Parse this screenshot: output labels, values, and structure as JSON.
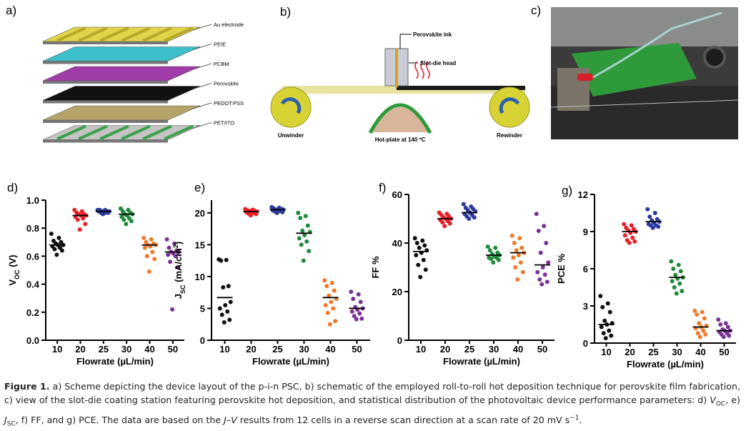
{
  "diagram": {
    "a": {
      "label": "a)",
      "layers": [
        "Au electrode",
        "PEIE",
        "PCBM",
        "Perovskite",
        "PEDOT:PSS",
        "PET/ITO"
      ]
    },
    "b": {
      "label": "b)",
      "texts": [
        "Perovskite ink",
        "Slot-die head",
        "Unwinder",
        "Hot-plate at 140 ºC",
        "Rewinder"
      ]
    },
    "c": {
      "label": "c)"
    }
  },
  "chart_data": [
    {
      "type": "strip",
      "panel": "d)",
      "ylabel": [
        "V",
        "OC",
        " (V)"
      ],
      "ylabel_styles": [
        "normal",
        "sub",
        "normal"
      ],
      "xlabel": "Flowrate (µL/min)",
      "categories": [
        "10",
        "20",
        "25",
        "30",
        "40",
        "50"
      ],
      "colors": [
        "#111111",
        "#e8202a",
        "#2b3a9b",
        "#1f8a3c",
        "#f07a2a",
        "#7b3294"
      ],
      "ylim": [
        0,
        1.0
      ],
      "yticks": [
        {
          "value": 0,
          "label": "0.0"
        },
        0.2,
        0.4,
        0.6,
        0.8,
        {
          "value": 1,
          "label": "1.0"
        }
      ],
      "means": [
        0.68,
        0.89,
        0.92,
        0.9,
        0.68,
        0.63
      ],
      "groups": [
        {
          "values": [
            0.76,
            0.73,
            0.71,
            0.7,
            0.69,
            0.68,
            0.68,
            0.67,
            0.66,
            0.65,
            0.64,
            0.61
          ]
        },
        {
          "values": [
            0.93,
            0.92,
            0.91,
            0.9,
            0.9,
            0.89,
            0.89,
            0.88,
            0.87,
            0.86,
            0.83,
            0.79
          ]
        },
        {
          "values": [
            0.93,
            0.93,
            0.93,
            0.92,
            0.92,
            0.92,
            0.92,
            0.92,
            0.91,
            0.91,
            0.91,
            0.9
          ]
        },
        {
          "values": [
            0.94,
            0.93,
            0.92,
            0.91,
            0.9,
            0.9,
            0.89,
            0.88,
            0.87,
            0.86,
            0.85,
            0.83
          ]
        },
        {
          "values": [
            0.73,
            0.72,
            0.7,
            0.69,
            0.68,
            0.68,
            0.67,
            0.66,
            0.63,
            0.6,
            0.58,
            0.49
          ]
        },
        {
          "values": [
            0.72,
            0.69,
            0.66,
            0.64,
            0.63,
            0.63,
            0.62,
            0.61,
            0.6,
            0.56,
            0.52,
            0.22
          ]
        }
      ]
    },
    {
      "type": "strip",
      "panel": "e)",
      "ylabel": [
        "J",
        "SC",
        " (mA/cm",
        "2",
        ")"
      ],
      "ylabel_styles": [
        "normal",
        "sub",
        "normal",
        "sup",
        "normal"
      ],
      "xlabel": "Flowrate (µL/min)",
      "categories": [
        "10",
        "20",
        "25",
        "30",
        "40",
        "50"
      ],
      "colors": [
        "#111111",
        "#e8202a",
        "#2b3a9b",
        "#1f8a3c",
        "#f07a2a",
        "#7b3294"
      ],
      "ylim": [
        0,
        22
      ],
      "yticks": [
        0,
        5,
        10,
        15,
        20
      ],
      "means": [
        6.7,
        20.2,
        20.5,
        16.8,
        6.7,
        5.0
      ],
      "groups": [
        {
          "values": [
            12.7,
            12.6,
            12.5,
            8.5,
            8.3,
            6.0,
            5.5,
            5.0,
            4.5,
            4.0,
            3.2,
            2.8
          ]
        },
        {
          "values": [
            20.6,
            20.5,
            20.4,
            20.3,
            20.3,
            20.2,
            20.2,
            20.1,
            20.0,
            19.9,
            19.8,
            19.6
          ]
        },
        {
          "values": [
            20.9,
            20.8,
            20.7,
            20.6,
            20.5,
            20.5,
            20.4,
            20.4,
            20.3,
            20.2,
            20.1,
            20.0
          ]
        },
        {
          "values": [
            20.0,
            19.5,
            19.2,
            18.0,
            17.2,
            17.0,
            16.5,
            16.0,
            15.5,
            15.0,
            14.0,
            12.5
          ]
        },
        {
          "values": [
            9.4,
            9.0,
            8.5,
            7.8,
            7.0,
            6.5,
            6.0,
            5.5,
            5.0,
            4.3,
            3.0,
            2.5
          ]
        },
        {
          "values": [
            7.6,
            7.2,
            6.5,
            6.0,
            5.2,
            5.0,
            4.8,
            4.5,
            4.2,
            3.8,
            3.4,
            3.3
          ]
        }
      ]
    },
    {
      "type": "strip",
      "panel": "f)",
      "ylabel": [
        "FF %"
      ],
      "ylabel_styles": [
        "normal"
      ],
      "xlabel": "Flowrate (µL/min)",
      "categories": [
        "10",
        "20",
        "25",
        "30",
        "40",
        "50"
      ],
      "colors": [
        "#111111",
        "#e8202a",
        "#2b3a9b",
        "#1f8a3c",
        "#f07a2a",
        "#7b3294"
      ],
      "ylim": [
        0,
        60
      ],
      "yticks": [
        0,
        20,
        40,
        60
      ],
      "means": [
        36.5,
        50,
        52.5,
        35,
        36,
        31
      ],
      "groups": [
        {
          "values": [
            42,
            41,
            40,
            39,
            38,
            37,
            36,
            35,
            33,
            31,
            29,
            26
          ]
        },
        {
          "values": [
            52.5,
            52,
            51.5,
            51,
            50.5,
            50,
            50,
            49.5,
            49,
            48.5,
            48,
            47
          ]
        },
        {
          "values": [
            56,
            55,
            54.5,
            54,
            53.5,
            53,
            52.5,
            52,
            51.5,
            51,
            50.5,
            50
          ]
        },
        {
          "values": [
            38.5,
            38,
            37,
            36,
            35.5,
            35,
            34.5,
            34,
            34,
            33.5,
            33,
            32
          ]
        },
        {
          "values": [
            43,
            42,
            40,
            38,
            37,
            36,
            35,
            34,
            32,
            30,
            28,
            25
          ]
        },
        {
          "values": [
            52,
            47,
            45,
            40,
            36,
            32,
            30,
            28,
            27,
            25,
            24,
            23
          ]
        }
      ]
    },
    {
      "type": "strip",
      "panel": "g)",
      "ylabel": [
        "PCE %"
      ],
      "ylabel_styles": [
        "normal"
      ],
      "xlabel": "Flowrate (µL/min)",
      "categories": [
        "10",
        "20",
        "25",
        "30",
        "40",
        "50"
      ],
      "colors": [
        "#111111",
        "#e8202a",
        "#2b3a9b",
        "#1f8a3c",
        "#f07a2a",
        "#7b3294"
      ],
      "ylim": [
        0,
        12
      ],
      "yticks": [
        0,
        3,
        6,
        9,
        12
      ],
      "means": [
        1.5,
        9.0,
        9.8,
        5.3,
        1.3,
        1.0
      ],
      "groups": [
        {
          "values": [
            3.8,
            3.2,
            2.9,
            2.5,
            1.8,
            1.6,
            1.5,
            1.3,
            1.0,
            0.8,
            0.6,
            0.4
          ]
        },
        {
          "values": [
            9.6,
            9.5,
            9.3,
            9.2,
            9.1,
            9.0,
            8.9,
            8.7,
            8.5,
            8.3,
            8.2,
            8.1
          ]
        },
        {
          "values": [
            10.8,
            10.5,
            10.2,
            10.0,
            9.9,
            9.8,
            9.7,
            9.6,
            9.5,
            9.5,
            9.4,
            9.3
          ]
        },
        {
          "values": [
            6.6,
            6.3,
            6.0,
            5.8,
            5.5,
            5.3,
            5.2,
            5.0,
            4.8,
            4.5,
            4.2,
            4.0
          ]
        },
        {
          "values": [
            2.6,
            2.5,
            2.3,
            2.0,
            1.6,
            1.4,
            1.3,
            1.2,
            1.0,
            0.8,
            0.7,
            0.5
          ]
        },
        {
          "values": [
            1.9,
            1.6,
            1.5,
            1.3,
            1.1,
            1.0,
            1.0,
            0.9,
            0.8,
            0.7,
            0.6,
            0.5
          ]
        }
      ]
    }
  ],
  "caption": {
    "parts": [
      {
        "text": "Figure 1.",
        "style": "bold"
      },
      {
        "text": "  a) Scheme depicting the device layout of the p-i-n PSC, b) schematic of the employed roll-to-roll hot deposition technique for perovskite film fabrication, c) view of the slot-die coating station featuring perovskite hot deposition, and statistical distribution of the photovoltaic device performance parameters: d) ",
        "style": "normal"
      },
      {
        "text": "V",
        "style": "italic"
      },
      {
        "text": "OC",
        "style": "sub"
      },
      {
        "text": ", e) ",
        "style": "normal"
      },
      {
        "text": "J",
        "style": "italic"
      },
      {
        "text": "SC",
        "style": "sub"
      },
      {
        "text": ", f) FF, and g) PCE. The data are based on the ",
        "style": "normal"
      },
      {
        "text": "J–V",
        "style": "italic"
      },
      {
        "text": " results from 12 cells in a reverse scan direction at a scan rate of 20 mV s",
        "style": "normal"
      },
      {
        "text": "−1",
        "style": "sup"
      },
      {
        "text": ".",
        "style": "normal"
      }
    ]
  }
}
